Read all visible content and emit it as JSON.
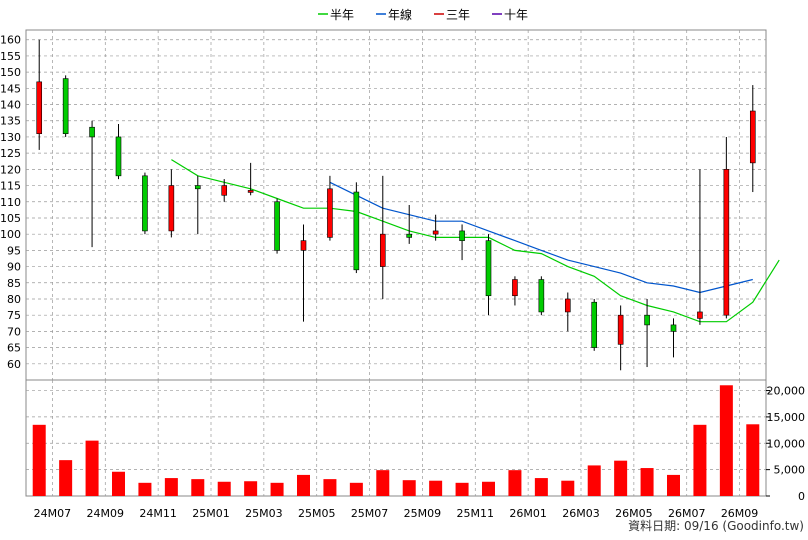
{
  "legend": [
    {
      "label": "半年",
      "color": "#00cc00"
    },
    {
      "label": "年線",
      "color": "#0055cc"
    },
    {
      "label": "三年",
      "color": "#cc0000"
    },
    {
      "label": "十年",
      "color": "#5500aa"
    }
  ],
  "footer": "資料日期: 09/16 (Goodinfo.tw)",
  "colors": {
    "up": "#ff0000",
    "down": "#00cc00",
    "volume": "#ff0000",
    "grid": "#999999"
  },
  "chart_data": [
    {
      "type": "candlestick",
      "title": "",
      "x_labels": [
        "24M07",
        "24M09",
        "24M11",
        "25M01",
        "25M03",
        "25M05",
        "25M07",
        "25M09",
        "25M11",
        "26M01",
        "26M03",
        "26M05",
        "26M07",
        "26M09"
      ],
      "y_ticks": [
        60,
        65,
        70,
        75,
        80,
        85,
        90,
        95,
        100,
        105,
        110,
        115,
        120,
        125,
        130,
        135,
        140,
        145,
        150,
        155,
        160
      ],
      "ylim": [
        55,
        163
      ],
      "grid": true,
      "candles": [
        {
          "open": 131,
          "close": 147,
          "high": 160,
          "low": 126
        },
        {
          "open": 148,
          "close": 131,
          "high": 149,
          "low": 130
        },
        {
          "open": 133,
          "close": 130,
          "high": 135,
          "low": 96
        },
        {
          "open": 130,
          "close": 118,
          "high": 134,
          "low": 117
        },
        {
          "open": 118,
          "close": 101,
          "high": 119,
          "low": 100
        },
        {
          "open": 101,
          "close": 115,
          "high": 120,
          "low": 99
        },
        {
          "open": 115,
          "close": 114,
          "high": 118,
          "low": 100
        },
        {
          "open": 112,
          "close": 115,
          "high": 117,
          "low": 110
        },
        {
          "open": 113,
          "close": 113.5,
          "high": 122,
          "low": 112
        },
        {
          "open": 110,
          "close": 95,
          "high": 111,
          "low": 94
        },
        {
          "open": 95,
          "close": 98,
          "high": 103,
          "low": 73
        },
        {
          "open": 99,
          "close": 114,
          "high": 118,
          "low": 98
        },
        {
          "open": 113,
          "close": 89,
          "high": 116,
          "low": 88
        },
        {
          "open": 90,
          "close": 100,
          "high": 118,
          "low": 80
        },
        {
          "open": 100,
          "close": 99,
          "high": 109,
          "low": 97
        },
        {
          "open": 100,
          "close": 101,
          "high": 106,
          "low": 98
        },
        {
          "open": 101,
          "close": 98,
          "high": 103,
          "low": 92
        },
        {
          "open": 98,
          "close": 81,
          "high": 100,
          "low": 75
        },
        {
          "open": 81,
          "close": 86,
          "high": 87,
          "low": 78
        },
        {
          "open": 86,
          "close": 76,
          "high": 87,
          "low": 75
        },
        {
          "open": 76,
          "close": 80,
          "high": 82,
          "low": 70
        },
        {
          "open": 79,
          "close": 65,
          "high": 80,
          "low": 64
        },
        {
          "open": 66,
          "close": 75,
          "high": 78,
          "low": 58
        },
        {
          "open": 75,
          "close": 72,
          "high": 80,
          "low": 59
        },
        {
          "open": 72,
          "close": 70,
          "high": 74,
          "low": 62
        },
        {
          "open": 74,
          "close": 76,
          "high": 120,
          "low": 72
        },
        {
          "open": 75,
          "close": 120,
          "high": 130,
          "low": 74
        },
        {
          "open": 122,
          "close": 138,
          "high": 146,
          "low": 113
        }
      ],
      "series": [
        {
          "name": "半年",
          "color": "#00cc00",
          "start_index": 5,
          "values": [
            123,
            118,
            116,
            114,
            111,
            108,
            108,
            107,
            104,
            101,
            99,
            99,
            99,
            95,
            94,
            90,
            87,
            81,
            78,
            76,
            73,
            73,
            79,
            92
          ]
        },
        {
          "name": "年線",
          "color": "#0055cc",
          "start_index": 11,
          "values": [
            116,
            112,
            108,
            106,
            104,
            104,
            101,
            98,
            95,
            92,
            90,
            88,
            85,
            84,
            82,
            84,
            86
          ]
        }
      ]
    },
    {
      "type": "bar",
      "title": "",
      "y_ticks": [
        0,
        5000,
        10000,
        15000,
        20000
      ],
      "y_tick_labels": [
        "0",
        "5,000",
        "10,000",
        "15,000",
        "20,000"
      ],
      "ylim": [
        0,
        22000
      ],
      "values": [
        13500,
        6800,
        10500,
        4600,
        2500,
        3400,
        3200,
        2700,
        2800,
        2500,
        4000,
        3200,
        2500,
        4900,
        3000,
        2900,
        2500,
        2700,
        4900,
        3400,
        2900,
        5800,
        6700,
        5300,
        4000,
        13500,
        21000,
        13600
      ]
    }
  ]
}
